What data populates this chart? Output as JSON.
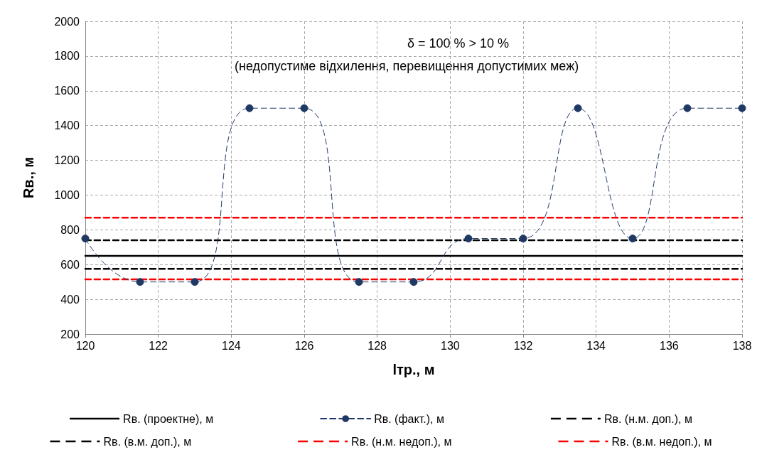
{
  "chart_data": {
    "type": "line",
    "xlabel": "lтр., м",
    "ylabel": "Rв., м",
    "annotations": [
      "δ = 100 % > 10 %",
      "(недопустиме відхилення, перевищення допустимих меж)"
    ],
    "xlim": [
      120,
      138
    ],
    "xticks": [
      120,
      122,
      124,
      126,
      128,
      130,
      132,
      134,
      136,
      138
    ],
    "ylim": [
      200,
      2000
    ],
    "yticks": [
      200,
      400,
      600,
      800,
      1000,
      1200,
      1400,
      1600,
      1800,
      2000
    ],
    "grid": true,
    "legend": "bottom",
    "series": [
      {
        "name": "Rв. (проектне), м",
        "color": "#000000",
        "line_style": "solid",
        "marker": "none",
        "x": [
          120,
          138
        ],
        "values": [
          650,
          650
        ]
      },
      {
        "name": "Rв. (факт.), м",
        "color": "#1f3864",
        "line_style": "dashed",
        "marker": "circle",
        "x": [
          120,
          121.5,
          123,
          124.5,
          126,
          127.5,
          129,
          130.5,
          132,
          133.5,
          135,
          136.5,
          138
        ],
        "values": [
          750,
          500,
          500,
          1500,
          1500,
          500,
          500,
          750,
          750,
          1500,
          750,
          1500,
          1500
        ]
      },
      {
        "name": "Rв. (н.м. доп.), м",
        "color": "#000000",
        "line_style": "dashed",
        "marker": "none",
        "x": [
          120,
          138
        ],
        "values": [
          575,
          575
        ]
      },
      {
        "name": "Rв. (в.м. доп.), м",
        "color": "#000000",
        "line_style": "dashed",
        "marker": "none",
        "x": [
          120,
          138
        ],
        "values": [
          740,
          740
        ]
      },
      {
        "name": "Rв. (н.м. недоп.), м",
        "color": "#ff0000",
        "line_style": "dashed",
        "marker": "none",
        "x": [
          120,
          138
        ],
        "values": [
          515,
          515
        ]
      },
      {
        "name": "Rв. (в.м. недоп.), м",
        "color": "#ff0000",
        "line_style": "dashed",
        "marker": "none",
        "x": [
          120,
          138
        ],
        "values": [
          870,
          870
        ]
      }
    ]
  }
}
